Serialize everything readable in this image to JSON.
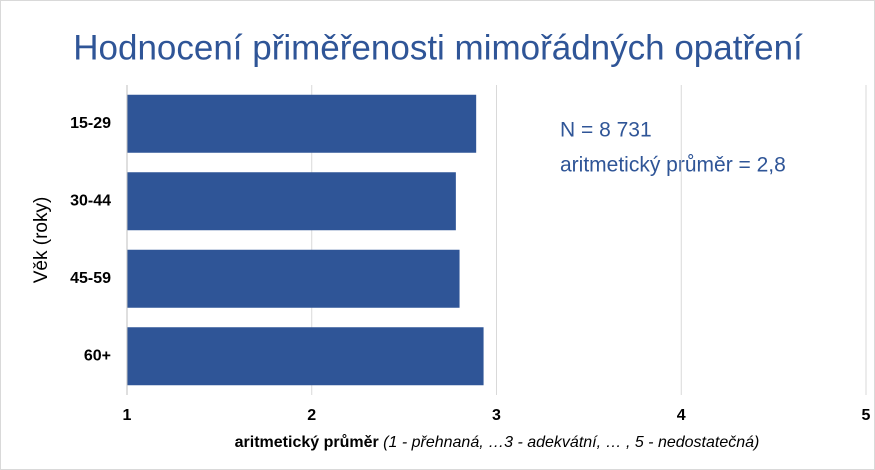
{
  "chart_data": {
    "type": "bar",
    "orientation": "horizontal",
    "title": "Hodnocení přiměřenosti mimořádných opatření",
    "categories": [
      "15-29",
      "30-44",
      "45-59",
      "60+"
    ],
    "values": [
      2.89,
      2.78,
      2.8,
      2.93
    ],
    "color": "#2f5597",
    "xlim": [
      1,
      5
    ],
    "xticks": [
      1,
      2,
      3,
      4,
      5
    ],
    "grid": true,
    "x_label_bold": "aritmetický průměr",
    "x_label_italic": "(1 - přehnaná, …3 - adekvátní, … , 5 - nedostatečná)",
    "y_label": "Věk (roky)",
    "annotations": [
      "N = 8 731",
      "aritmetický průměr = 2,8"
    ]
  }
}
